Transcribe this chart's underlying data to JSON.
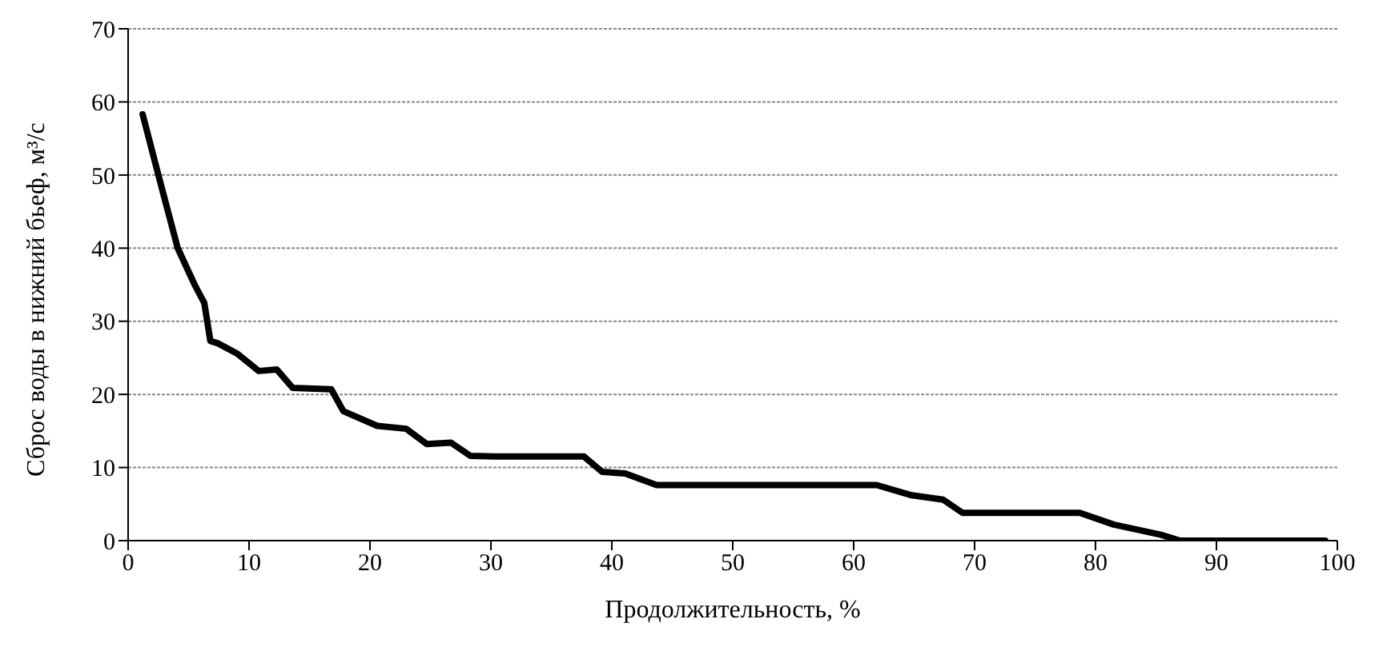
{
  "chart_data": {
    "type": "line",
    "xlabel": "Продолжительность, %",
    "ylabel": "Сброс воды в нижний бьеф, м³/с",
    "x": [
      1.2,
      2.5,
      4.1,
      5.5,
      6.3,
      6.8,
      7.4,
      9,
      10.8,
      12.3,
      13.6,
      16.8,
      17.8,
      20.6,
      23,
      24.7,
      26.7,
      28.3,
      30.3,
      37.7,
      39.2,
      41.1,
      43.7,
      50,
      61.9,
      64.8,
      67.4,
      69,
      75,
      78.7,
      81.5,
      85.4,
      87,
      93,
      99
    ],
    "series": [
      {
        "color": "#000000",
        "values": [
          58.3,
          50,
          40,
          35,
          32.5,
          27.3,
          27,
          25.6,
          23.2,
          23.4,
          20.9,
          20.7,
          17.7,
          15.7,
          15.3,
          13.2,
          13.4,
          11.6,
          11.5,
          11.5,
          9.4,
          9.2,
          7.6,
          7.6,
          7.6,
          6.2,
          5.6,
          3.8,
          3.8,
          3.8,
          2.2,
          0.8,
          0,
          0,
          0
        ]
      }
    ],
    "xlim": [
      0,
      100
    ],
    "xticks": [
      0,
      10,
      20,
      30,
      40,
      50,
      60,
      70,
      80,
      90,
      100
    ],
    "ylim": [
      0,
      70
    ],
    "yticks": [
      0,
      10,
      20,
      30,
      40,
      50,
      60,
      70
    ],
    "grid": "y",
    "marker": "none",
    "line_style": "solid"
  }
}
